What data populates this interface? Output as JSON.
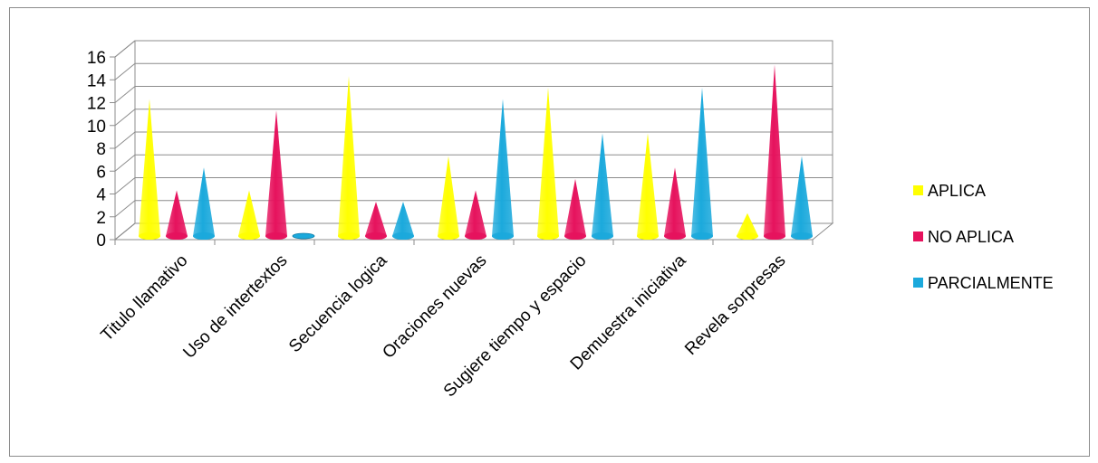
{
  "chart_data": {
    "type": "bar",
    "style": "3d-cone",
    "categories": [
      "Titulo llamativo",
      "Uso de intertextos",
      "Secuencia logica",
      "Oraciones nuevas",
      "Sugiere tiempo y espacio",
      "Demuestra iniciativa",
      "Revela sorpresas"
    ],
    "series": [
      {
        "name": "APLICA",
        "color": "#ffff00",
        "values": [
          12,
          4,
          14,
          7,
          13,
          9,
          2
        ]
      },
      {
        "name": "NO APLICA",
        "color": "#e6125d",
        "values": [
          4,
          11,
          3,
          4,
          5,
          6,
          15
        ]
      },
      {
        "name": "PARCIALMENTE",
        "color": "#1ba9dc",
        "values": [
          6,
          0,
          3,
          12,
          9,
          13,
          7
        ]
      }
    ],
    "yticks": [
      "0",
      "2",
      "4",
      "6",
      "8",
      "10",
      "12",
      "14",
      "16"
    ],
    "ylim": [
      0,
      16
    ],
    "grid": true,
    "legend_position": "right"
  }
}
